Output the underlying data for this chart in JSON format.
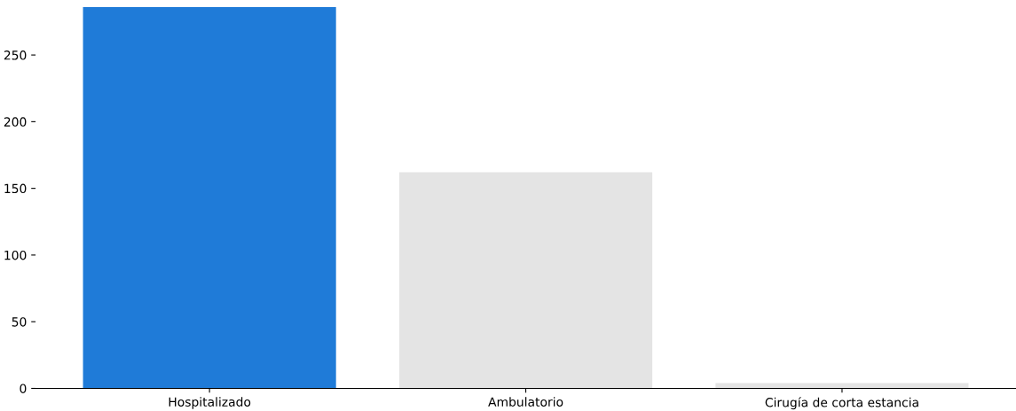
{
  "chart_data": {
    "type": "bar",
    "categories": [
      "Hospitalizado",
      "Ambulatorio",
      "Cirugía de corta estancia"
    ],
    "values": [
      286,
      162,
      4
    ],
    "colors": [
      "#1f7bd8",
      "#e4e4e4",
      "#e4e4e4"
    ],
    "ylim": [
      0,
      286
    ],
    "yticks": [
      0,
      50,
      100,
      150,
      200,
      250
    ],
    "grid": false,
    "legend": false
  }
}
